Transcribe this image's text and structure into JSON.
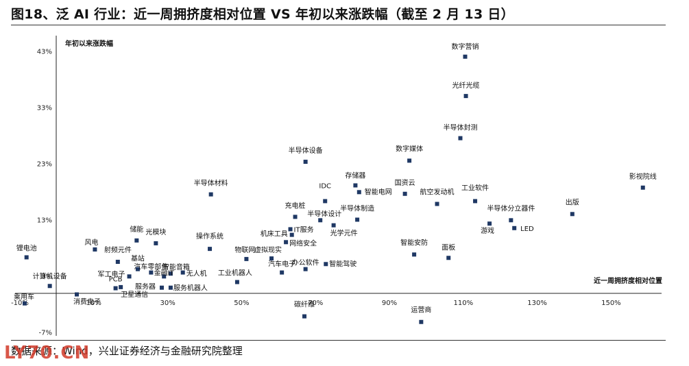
{
  "title": "图18、泛 AI 行业：近一周拥挤度相对位置 VS 年初以来涨跌幅（截至 2 月 13 日）",
  "source": "数据来源：Wind，兴业证券经济与金融研究院整理",
  "watermark": "LY70.CN",
  "colors": {
    "marker": "#1f3864",
    "axis": "#222222",
    "watermark": "#d23a2a"
  },
  "chart_data": {
    "type": "scatter",
    "title": "图18、泛 AI 行业：近一周拥挤度相对位置 VS 年初以来涨跌幅（截至 2 月 13 日）",
    "xlabel": "近一周拥挤度相对位置",
    "ylabel": "年初以来涨跌幅",
    "xlim": [
      -10,
      160
    ],
    "ylim": [
      -8,
      45
    ],
    "x_ticks": [
      -10,
      10,
      30,
      50,
      70,
      90,
      110,
      130,
      150
    ],
    "x_tick_labels": [
      "-10%",
      "10%",
      "30%",
      "50%",
      "70%",
      "90%",
      "110%",
      "130%",
      "150%"
    ],
    "y_ticks": [
      -7,
      3,
      13,
      23,
      33,
      43
    ],
    "y_tick_labels": [
      "-7%",
      "3%",
      "13%",
      "23%",
      "33%",
      "43%"
    ],
    "grid": false,
    "points": [
      {
        "name": "数字营销",
        "x": 110.5,
        "y": 42.0
      },
      {
        "name": "光纤光缆",
        "x": 110.7,
        "y": 35.0
      },
      {
        "name": "半导体封测",
        "x": 109.2,
        "y": 27.5
      },
      {
        "name": "数字媒体",
        "x": 95.4,
        "y": 23.5
      },
      {
        "name": "半导体设备",
        "x": 67.3,
        "y": 23.3
      },
      {
        "name": "影视院线",
        "x": 158.6,
        "y": 18.7
      },
      {
        "name": "存储器",
        "x": 80.8,
        "y": 19.1
      },
      {
        "name": "智能电网",
        "x": 81.8,
        "y": 17.9
      },
      {
        "name": "国资云",
        "x": 94.2,
        "y": 17.6
      },
      {
        "name": "航空发动机",
        "x": 102.9,
        "y": 15.8
      },
      {
        "name": "工业软件",
        "x": 113.2,
        "y": 16.3
      },
      {
        "name": "IDC",
        "x": 72.6,
        "y": 16.3
      },
      {
        "name": "半导体材料",
        "x": 41.7,
        "y": 17.5
      },
      {
        "name": "出版",
        "x": 139.5,
        "y": 14.0
      },
      {
        "name": "充电桩",
        "x": 64.5,
        "y": 13.5
      },
      {
        "name": "半导体设计",
        "x": 71.3,
        "y": 12.9
      },
      {
        "name": "半导体制造",
        "x": 81.3,
        "y": 13.0
      },
      {
        "name": "半导体分立器件",
        "x": 122.9,
        "y": 12.9
      },
      {
        "name": "游戏",
        "x": 117.1,
        "y": 12.3
      },
      {
        "name": "LED",
        "x": 123.8,
        "y": 11.5
      },
      {
        "name": "IT服务",
        "x": 63.2,
        "y": 11.3
      },
      {
        "name": "光学元件",
        "x": 74.9,
        "y": 12.0
      },
      {
        "name": "机床工具",
        "x": 63.6,
        "y": 10.3
      },
      {
        "name": "网络安全",
        "x": 62.0,
        "y": 9.0
      },
      {
        "name": "储能",
        "x": 21.6,
        "y": 9.3
      },
      {
        "name": "光模块",
        "x": 26.8,
        "y": 8.8
      },
      {
        "name": "操作系统",
        "x": 41.4,
        "y": 7.8
      },
      {
        "name": "风电",
        "x": 10.3,
        "y": 7.7
      },
      {
        "name": "锂电池",
        "x": -8.2,
        "y": 6.3
      },
      {
        "name": "智能安防",
        "x": 96.7,
        "y": 6.8
      },
      {
        "name": "面板",
        "x": 106.0,
        "y": 6.2
      },
      {
        "name": "射频元件",
        "x": 16.5,
        "y": 5.5
      },
      {
        "name": "物联网",
        "x": 51.3,
        "y": 6.0
      },
      {
        "name": "虚拟现实",
        "x": 58.1,
        "y": 6.1
      },
      {
        "name": "智能驾驶",
        "x": 72.8,
        "y": 5.1
      },
      {
        "name": "办公软件",
        "x": 67.3,
        "y": 4.2
      },
      {
        "name": "汽车电子",
        "x": 60.9,
        "y": 3.6
      },
      {
        "name": "基站",
        "x": 21.9,
        "y": 4.2
      },
      {
        "name": "汽车零部件",
        "x": 25.5,
        "y": 3.6
      },
      {
        "name": "智能音箱",
        "x": 30.8,
        "y": 3.4
      },
      {
        "name": "无人机",
        "x": 34.1,
        "y": 3.6
      },
      {
        "name": "军工电子",
        "x": 19.6,
        "y": 2.9
      },
      {
        "name": "金融IT",
        "x": 29.0,
        "y": 2.9
      },
      {
        "name": "PCB",
        "x": 15.9,
        "y": 0.8
      },
      {
        "name": "卫星通信",
        "x": 17.3,
        "y": 1.0
      },
      {
        "name": "服务器",
        "x": 28.4,
        "y": 0.9
      },
      {
        "name": "服务机器人",
        "x": 30.8,
        "y": 0.9
      },
      {
        "name": "工业机器人",
        "x": 48.8,
        "y": 1.9
      },
      {
        "name": "计算机设备",
        "x": -1.9,
        "y": 1.2
      },
      {
        "name": "消费电子",
        "x": 5.4,
        "y": -0.3
      },
      {
        "name": "乘用车",
        "x": -8.7,
        "y": -1.9
      },
      {
        "name": "碳纤维",
        "x": 67.0,
        "y": -4.2
      },
      {
        "name": "运营商",
        "x": 98.6,
        "y": -5.2
      }
    ]
  }
}
